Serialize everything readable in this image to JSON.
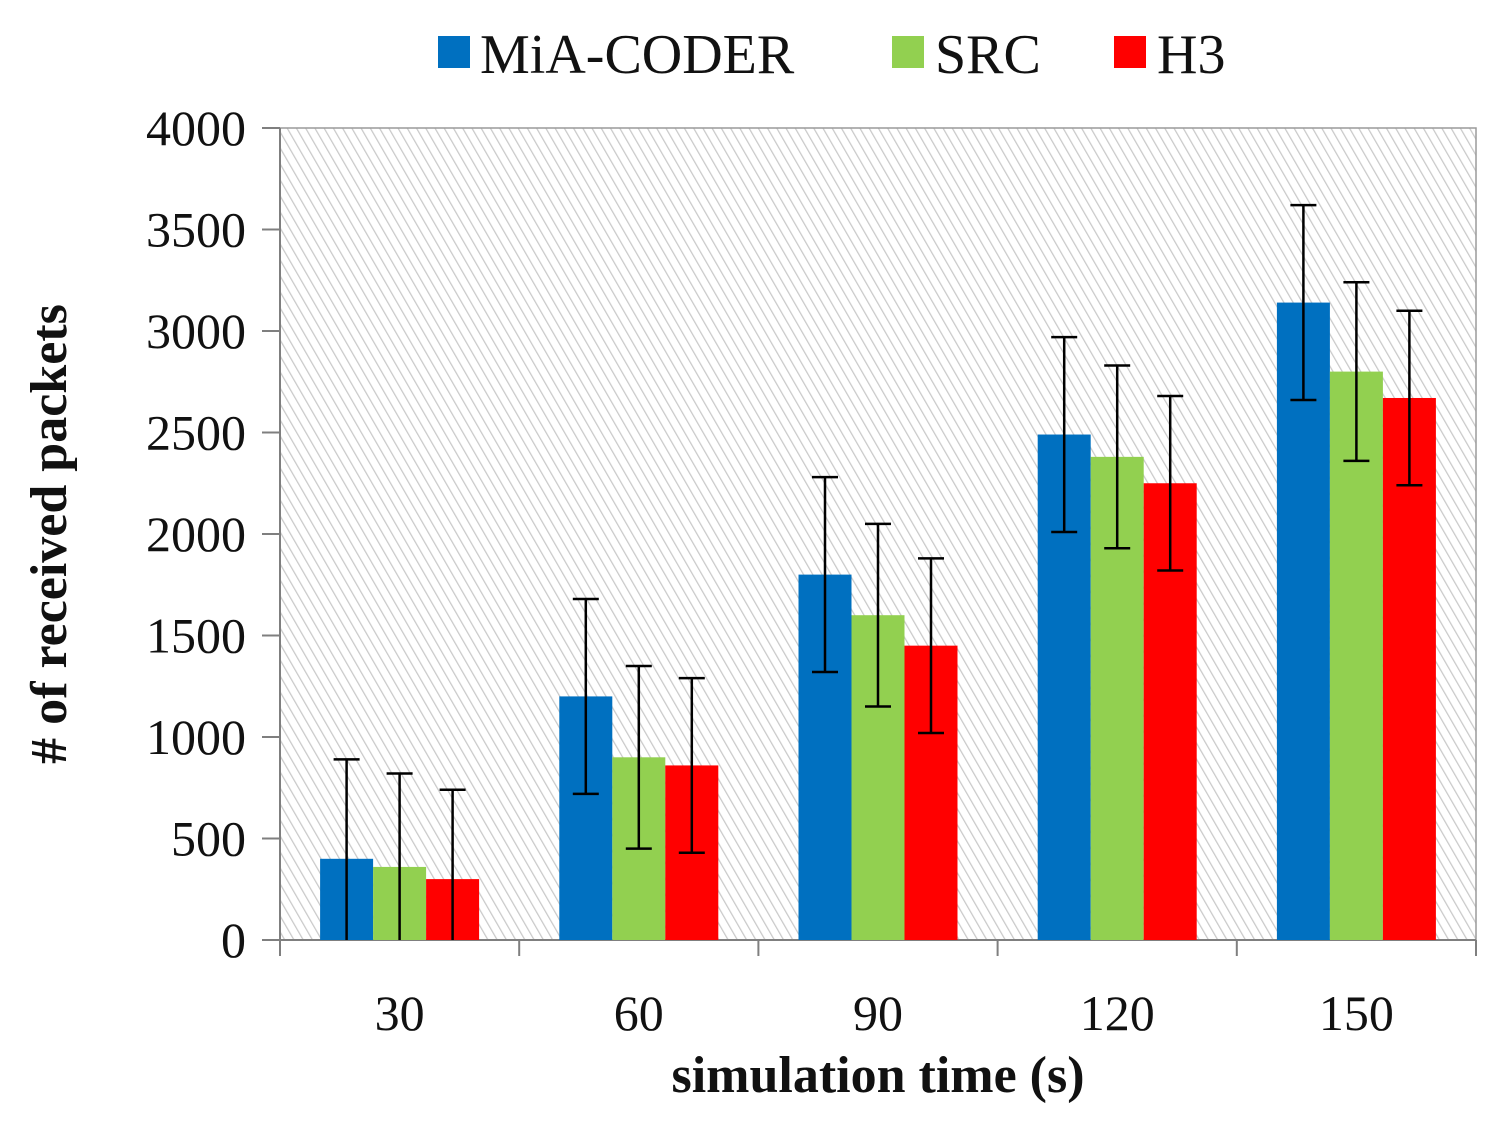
{
  "chart_data": {
    "type": "bar",
    "title": "",
    "xlabel": "simulation time (s)",
    "ylabel": "# of received packets",
    "categories": [
      "30",
      "60",
      "90",
      "120",
      "150"
    ],
    "ylim": [
      0,
      4000
    ],
    "yticks": [
      0,
      500,
      1000,
      1500,
      2000,
      2500,
      3000,
      3500,
      4000
    ],
    "legend_position": "top",
    "grid": false,
    "background": "hatched",
    "series": [
      {
        "name": "MiA-CODER",
        "color": "#0070C0",
        "values": [
          400,
          1200,
          1800,
          2490,
          3140
        ],
        "errors": [
          490,
          480,
          480,
          480,
          480
        ]
      },
      {
        "name": "SRC",
        "color": "#92D050",
        "values": [
          360,
          900,
          1600,
          2380,
          2800
        ],
        "errors": [
          460,
          450,
          450,
          450,
          440
        ]
      },
      {
        "name": "H3",
        "color": "#FF0000",
        "values": [
          300,
          860,
          1450,
          2250,
          2670
        ],
        "errors": [
          440,
          430,
          430,
          430,
          430
        ]
      }
    ]
  }
}
